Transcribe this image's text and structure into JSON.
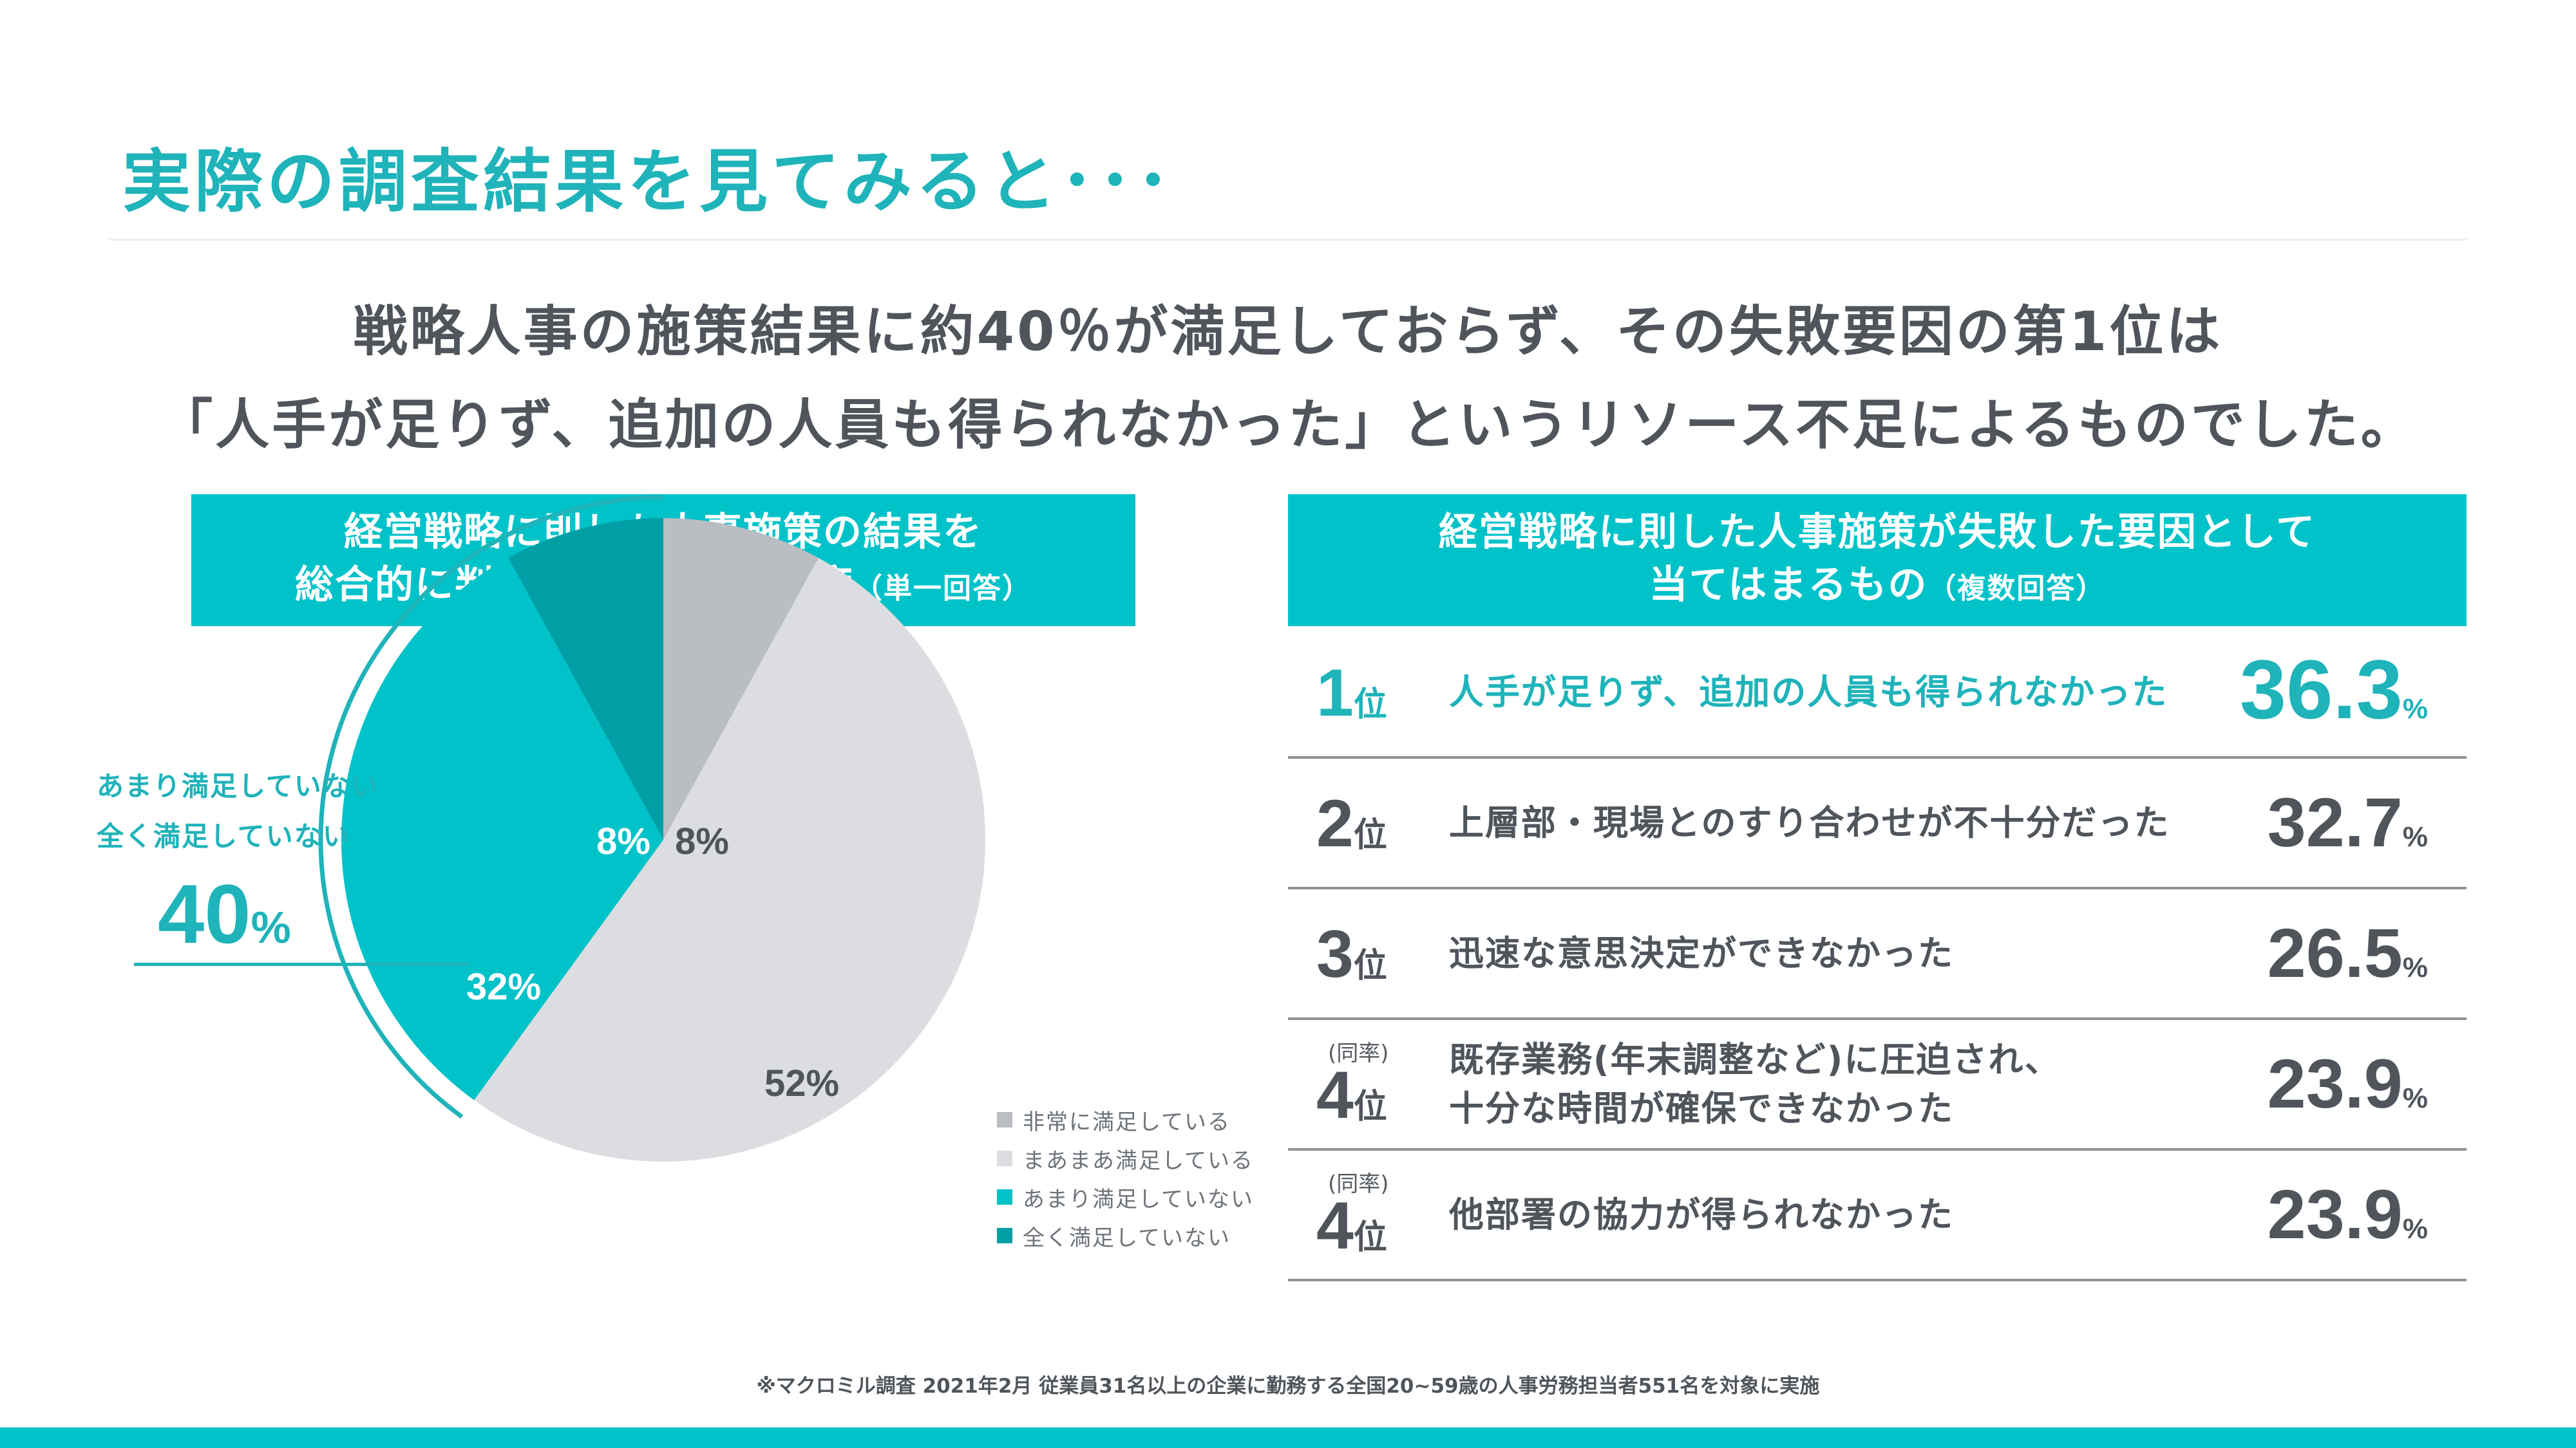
{
  "header": {
    "title": "実際の調査結果を見てみると･･･",
    "lead_line1": "戦略人事の施策結果に約40％が満足しておらず、その失敗要因の第1位は",
    "lead_line2": "「人手が足りず、追加の人員も得られなかった」というリソース不足によるものでした。"
  },
  "left_panel": {
    "heading_line1": "経営戦略に則した人事施策の結果を",
    "heading_line2": "総合的に判断したときの満足度",
    "heading_note": "（単一回答）",
    "callout_line1": "あまり満足していない",
    "callout_line2": "全く満足していない",
    "callout_value": "40",
    "callout_unit": "%"
  },
  "right_panel": {
    "heading_line1": "経営戦略に則した人事施策が失敗した要因として",
    "heading_line2": "当てはまるもの",
    "heading_note": "（複数回答）"
  },
  "chart_data": [
    {
      "type": "pie",
      "start": "12 o'clock, clockwise",
      "series": [
        {
          "name": "非常に満足している",
          "value": 8,
          "label": "8%",
          "color": "#babdc1",
          "label_color": "#4f555b"
        },
        {
          "name": "まあまあ満足している",
          "value": 52,
          "label": "52%",
          "color": "#dcdde0",
          "label_color": "#4f555b"
        },
        {
          "name": "あまり満足していない",
          "value": 32,
          "label": "32%",
          "color": "#00c2c9",
          "label_color": "#ffffff"
        },
        {
          "name": "全く満足していない",
          "value": 8,
          "label": "8%",
          "color": "#009fa6",
          "label_color": "#ffffff"
        }
      ],
      "legend_position": "bottom-right"
    },
    {
      "type": "table",
      "rows": [
        {
          "rank": "1",
          "rank_unit": "位",
          "tie": "",
          "text_line1": "人手が足りず、追加の人員も得られなかった",
          "text_line2": "",
          "value": "36.3",
          "unit": "%"
        },
        {
          "rank": "2",
          "rank_unit": "位",
          "tie": "",
          "text_line1": "上層部・現場とのすり合わせが不十分だった",
          "text_line2": "",
          "value": "32.7",
          "unit": "%"
        },
        {
          "rank": "3",
          "rank_unit": "位",
          "tie": "",
          "text_line1": "迅速な意思決定ができなかった",
          "text_line2": "",
          "value": "26.5",
          "unit": "%"
        },
        {
          "rank": "4",
          "rank_unit": "位",
          "tie": "(同率)",
          "text_line1": "既存業務(年末調整など)に圧迫され、",
          "text_line2": "十分な時間が確保できなかった",
          "value": "23.9",
          "unit": "%"
        },
        {
          "rank": "4",
          "rank_unit": "位",
          "tie": "(同率)",
          "text_line1": "他部署の協力が得られなかった",
          "text_line2": "",
          "value": "23.9",
          "unit": "%"
        }
      ]
    }
  ],
  "footer": {
    "note": "※マクロミル調査 2021年2月 従業員31名以上の企業に勤務する全国20~59歳の人事労務担当者551名を対象に実施"
  }
}
